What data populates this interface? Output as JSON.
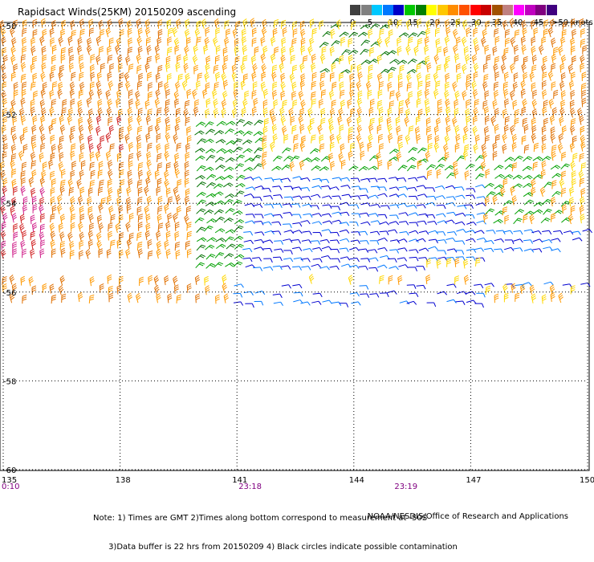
{
  "title": "Rapidsact Winds(25KM) 20150209 ascending",
  "legend": {
    "colors": [
      "#404040",
      "#808080",
      "#00c8ff",
      "#0078ff",
      "#0000c8",
      "#00c800",
      "#008000",
      "#ffff00",
      "#ffc800",
      "#ff8c00",
      "#ff5000",
      "#ff0000",
      "#c80000",
      "#a05000",
      "#c08080",
      "#ff00ff",
      "#c000c0",
      "#800080",
      "#400080"
    ],
    "labels": [
      {
        "text": "0",
        "at": 0
      },
      {
        "text": "5",
        "at": 1.6
      },
      {
        "text": "10",
        "at": 3.5
      },
      {
        "text": "15",
        "at": 5.3
      },
      {
        "text": "20",
        "at": 7.3
      },
      {
        "text": "25",
        "at": 9.2
      },
      {
        "text": "30",
        "at": 11.1
      },
      {
        "text": "35",
        "at": 13.0
      },
      {
        "text": "40",
        "at": 14.9
      },
      {
        "text": "45",
        "at": 16.8
      }
    ],
    "unit": ">50 knots"
  },
  "axes": {
    "lat_labels": [
      "-50",
      "-52",
      "-54",
      "-56",
      "-58",
      "-60"
    ],
    "lon_labels": [
      "135",
      "138",
      "141",
      "144",
      "147",
      "150"
    ],
    "lat_range": [
      -60,
      -50
    ],
    "lon_range": [
      135,
      150
    ]
  },
  "times": [
    {
      "text": "0:10",
      "lon": 135
    },
    {
      "text": "23:18",
      "lon": 141
    },
    {
      "text": "23:19",
      "lon": 145
    }
  ],
  "note_lines": [
    "Note: 1) Times are GMT 2)Times along bottom correspond to measurement at -50S",
    "      3)Data buffer is 22 hrs from 20150209 4) Black circles indicate possible contamination"
  ],
  "credit": "NOAA/NESDIS/Office of Research and Applications",
  "wind_colors": {
    "yellow": "#ffd700",
    "orange": "#ff9900",
    "darkorange": "#e07000",
    "red": "#d02020",
    "magenta": "#d0208a",
    "green": "#00a000",
    "darkgreen": "#007000",
    "blue": "#0000d0",
    "lightblue": "#0078ff"
  }
}
